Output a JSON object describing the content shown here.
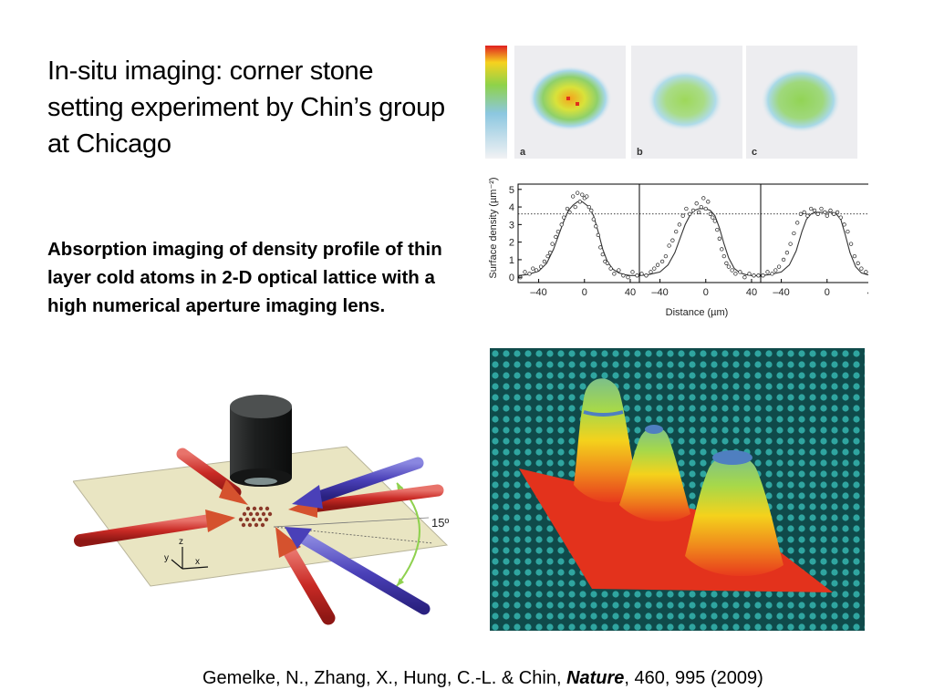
{
  "slide": {
    "title": "In-situ imaging: corner stone setting experiment by Chin’s group at Chicago",
    "description": "Absorption imaging of density profile of thin layer cold atoms in 2-D optical lattice with a high numerical aperture imaging lens.",
    "citation": {
      "authors": "Gemelke, N., Zhang, X., Hung, C.-L. & Chin, ",
      "journal": "Nature",
      "details": ", 460, 995 (2009)"
    }
  },
  "absorption_images": {
    "panel_labels": [
      "a",
      "b",
      "c"
    ]
  },
  "setup_diagram": {
    "angle_label": "15º",
    "axis_labels": {
      "x": "x",
      "y": "y",
      "z": "z"
    }
  },
  "chart_data": {
    "type": "scatter",
    "xlabel": "Distance (µm)",
    "ylabel": "Surface density (µm⁻²)",
    "xlim": [
      -58,
      48
    ],
    "ylim": [
      -0.3,
      5.3
    ],
    "x_ticks": [
      "–40",
      "0",
      "40"
    ],
    "y_ticks": [
      "0",
      "1",
      "2",
      "3",
      "4",
      "5"
    ],
    "reference_line_y": 3.6,
    "panels": [
      {
        "fit_x": [
          -58,
          -50,
          -40,
          -33,
          -27,
          -22,
          -18,
          -14,
          -10,
          -6,
          -2,
          0,
          4,
          8,
          12,
          16,
          20,
          25,
          30,
          35,
          40,
          48
        ],
        "fit_y": [
          0.1,
          0.15,
          0.35,
          0.8,
          1.6,
          2.5,
          3.2,
          3.8,
          4.1,
          4.3,
          4.3,
          4.2,
          4.0,
          3.5,
          2.6,
          1.6,
          0.9,
          0.45,
          0.25,
          0.15,
          0.1,
          0.1
        ],
        "points_x": [
          -56,
          -52,
          -48,
          -45,
          -42,
          -38,
          -35,
          -32,
          -30,
          -28,
          -25,
          -23,
          -20,
          -18,
          -15,
          -13,
          -10,
          -8,
          -6,
          -4,
          -2,
          0,
          2,
          4,
          6,
          8,
          10,
          12,
          14,
          16,
          18,
          20,
          23,
          26,
          30,
          34,
          38,
          42,
          46
        ],
        "points_y": [
          0.0,
          0.3,
          0.2,
          0.5,
          0.4,
          0.6,
          0.9,
          1.2,
          1.4,
          1.9,
          2.3,
          2.6,
          3.0,
          3.4,
          3.9,
          3.7,
          4.6,
          4.0,
          4.8,
          4.3,
          4.7,
          4.5,
          4.6,
          4.0,
          3.8,
          3.3,
          2.9,
          2.4,
          1.7,
          1.3,
          0.9,
          0.8,
          0.5,
          0.2,
          0.4,
          0.1,
          0.0,
          0.3,
          0.1
        ]
      },
      {
        "fit_x": [
          -58,
          -50,
          -40,
          -33,
          -27,
          -22,
          -18,
          -14,
          -10,
          -6,
          -2,
          0,
          4,
          8,
          12,
          16,
          20,
          25,
          30,
          35,
          40,
          48
        ],
        "fit_y": [
          0.1,
          0.15,
          0.3,
          0.7,
          1.4,
          2.3,
          3.0,
          3.5,
          3.8,
          3.9,
          3.9,
          3.9,
          3.8,
          3.5,
          2.8,
          1.9,
          1.1,
          0.5,
          0.25,
          0.15,
          0.1,
          0.1
        ],
        "points_x": [
          -56,
          -52,
          -48,
          -45,
          -42,
          -38,
          -35,
          -32,
          -29,
          -26,
          -23,
          -20,
          -17,
          -14,
          -11,
          -8,
          -6,
          -4,
          -2,
          0,
          2,
          4,
          6,
          8,
          10,
          12,
          14,
          16,
          18,
          20,
          23,
          26,
          30,
          34,
          38,
          42,
          46
        ],
        "points_y": [
          0.2,
          0.1,
          0.3,
          0.5,
          0.7,
          0.9,
          1.2,
          1.8,
          2.1,
          2.6,
          3.0,
          3.5,
          3.9,
          3.6,
          3.8,
          4.2,
          3.7,
          4.0,
          4.5,
          3.9,
          4.3,
          3.6,
          3.4,
          3.2,
          2.7,
          2.2,
          1.6,
          1.2,
          0.8,
          0.6,
          0.4,
          0.2,
          0.3,
          0.0,
          0.2,
          0.1,
          0.1
        ]
      },
      {
        "fit_x": [
          -58,
          -50,
          -40,
          -33,
          -27,
          -22,
          -18,
          -14,
          -10,
          -6,
          -2,
          0,
          4,
          8,
          12,
          16,
          20,
          25,
          30,
          35,
          40,
          48
        ],
        "fit_y": [
          0.1,
          0.15,
          0.3,
          0.7,
          1.5,
          2.6,
          3.3,
          3.6,
          3.7,
          3.7,
          3.7,
          3.7,
          3.7,
          3.6,
          3.3,
          2.4,
          1.4,
          0.6,
          0.25,
          0.15,
          0.1,
          0.1
        ],
        "points_x": [
          -56,
          -52,
          -48,
          -45,
          -42,
          -38,
          -35,
          -32,
          -29,
          -26,
          -23,
          -20,
          -17,
          -14,
          -11,
          -8,
          -5,
          -2,
          0,
          3,
          6,
          9,
          12,
          15,
          18,
          21,
          24,
          27,
          30,
          34,
          38,
          42,
          46
        ],
        "points_y": [
          0.1,
          0.3,
          0.2,
          0.4,
          0.6,
          1.0,
          1.4,
          1.9,
          2.5,
          3.1,
          3.6,
          3.7,
          3.5,
          3.9,
          3.8,
          3.6,
          3.9,
          3.7,
          3.5,
          3.8,
          3.6,
          3.7,
          3.4,
          3.0,
          2.6,
          1.9,
          1.2,
          0.8,
          0.5,
          0.3,
          0.1,
          0.2,
          0.0
        ]
      }
    ]
  }
}
